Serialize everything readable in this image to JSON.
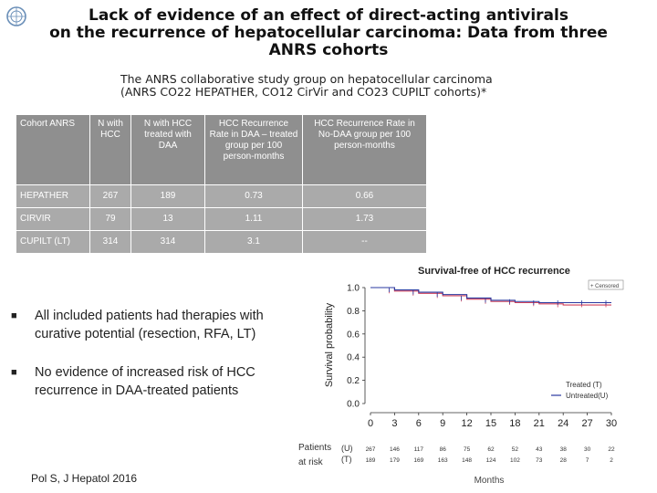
{
  "slide": {
    "title_lines": [
      "Lack of evidence of an effect of direct-acting antivirals",
      "on the recurrence of hepatocellular carcinoma: Data from three",
      "ANRS cohorts"
    ],
    "subtitle_lines": [
      "The ANRS collaborative study group on hepatocellular carcinoma",
      "(ANRS CO22 HEPATHER, CO12 CirVir and CO23 CUPILT cohorts)*"
    ],
    "reference": "Pol S, J Hepatol 2016"
  },
  "table": {
    "headers": [
      "Cohort ANRS",
      "N with HCC",
      "N with HCC treated with DAA",
      "HCC Recurrence Rate in DAA – treated group per 100 person-months",
      "HCC Recurrence Rate in No-DAA group per 100 person-months"
    ],
    "rows": [
      [
        "HEPATHER",
        "267",
        "189",
        "0.73",
        "0.66"
      ],
      [
        "CIRVIR",
        "79",
        "13",
        "1.11",
        "1.73"
      ],
      [
        "CUPILT (LT)",
        "314",
        "314",
        "3.1",
        "--"
      ]
    ]
  },
  "bullets": [
    "All included patients had therapies with curative potential (resection, RFA, LT)",
    "No evidence of increased risk of HCC recurrence in DAA-treated patients"
  ],
  "km_chart": {
    "title": "Survival-free of HCC recurrence",
    "ylabel": "Survival probability",
    "xlabel": "Months",
    "yticks": [
      "0.0",
      "0.2",
      "0.4",
      "0.6",
      "0.8",
      "1.0"
    ],
    "xticks": [
      "0",
      "3",
      "6",
      "9",
      "12",
      "15",
      "18",
      "21",
      "24",
      "27",
      "30"
    ],
    "legend_censored": "+ Censored",
    "legend_treated": "Treated (T)",
    "legend_untreated": "Untreated(U)",
    "at_risk_label_1": "Patients",
    "at_risk_label_2": "at risk",
    "at_risk_rows": [
      {
        "label": "(U)",
        "values": [
          "267",
          "146",
          "117",
          "86",
          "75",
          "62",
          "52",
          "43",
          "38",
          "30",
          "22"
        ]
      },
      {
        "label": "(T)",
        "values": [
          "189",
          "179",
          "169",
          "163",
          "148",
          "124",
          "102",
          "73",
          "28",
          "7",
          "2"
        ]
      }
    ],
    "colors": {
      "treated": "#d0405a",
      "untreated": "#2a3aa0",
      "axis": "#333333"
    }
  },
  "chart_data": {
    "type": "line",
    "title": "Survival-free of HCC recurrence",
    "xlabel": "Months",
    "ylabel": "Survival probability",
    "xlim": [
      0,
      30
    ],
    "ylim": [
      0,
      1
    ],
    "series": [
      {
        "name": "Treated (T)",
        "x": [
          0,
          3,
          6,
          9,
          12,
          15,
          18,
          21,
          24,
          27,
          30
        ],
        "y": [
          1.0,
          0.97,
          0.95,
          0.93,
          0.9,
          0.88,
          0.87,
          0.86,
          0.85,
          0.85,
          0.85
        ]
      },
      {
        "name": "Untreated(U)",
        "x": [
          0,
          3,
          6,
          9,
          12,
          15,
          18,
          21,
          24,
          27,
          30
        ],
        "y": [
          1.0,
          0.98,
          0.96,
          0.94,
          0.91,
          0.89,
          0.88,
          0.87,
          0.87,
          0.87,
          0.87
        ]
      }
    ]
  }
}
